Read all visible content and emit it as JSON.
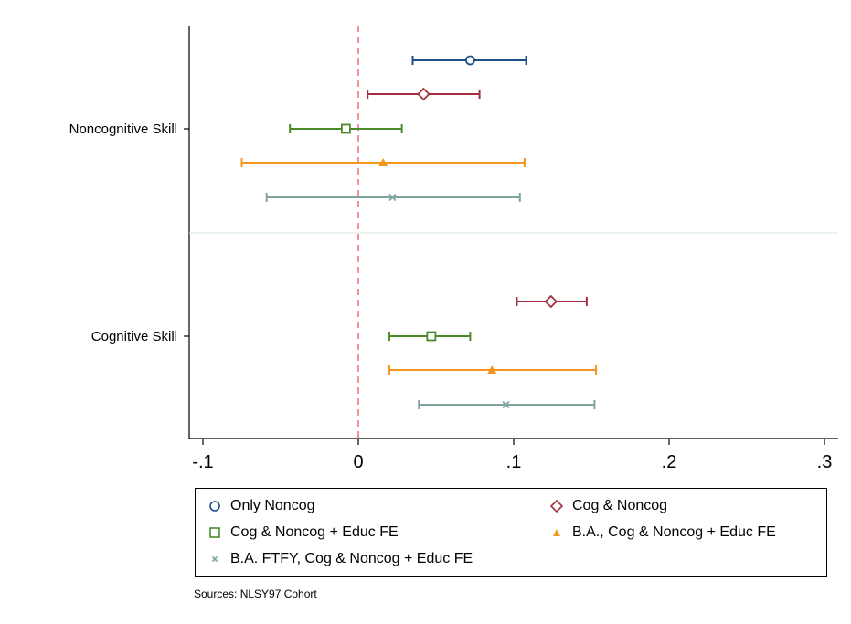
{
  "chart_data": {
    "type": "coefficient-plot",
    "xlim": [
      -0.11,
      0.31
    ],
    "xticks": [
      -0.1,
      0,
      0.1,
      0.2,
      0.3
    ],
    "xtick_labels": [
      "-.1",
      "0",
      ".1",
      ".2",
      ".3"
    ],
    "reference_line": 0,
    "categories": [
      "Noncognitive Skill",
      "Cognitive Skill"
    ],
    "grid": false,
    "legend_position": "bottom",
    "series": [
      {
        "name": "Only Noncog",
        "color": "#1f4e8c",
        "marker": "circle",
        "points": [
          {
            "category": "Noncognitive Skill",
            "estimate": 0.072,
            "ci": [
              0.035,
              0.108
            ]
          }
        ]
      },
      {
        "name": "Cog & Noncog",
        "color": "#a4303f",
        "marker": "diamond",
        "points": [
          {
            "category": "Noncognitive Skill",
            "estimate": 0.042,
            "ci": [
              0.006,
              0.078
            ]
          },
          {
            "category": "Cognitive Skill",
            "estimate": 0.124,
            "ci": [
              0.102,
              0.147
            ]
          }
        ]
      },
      {
        "name": "Cog & Noncog + Educ FE",
        "color": "#4d8a2a",
        "marker": "square",
        "points": [
          {
            "category": "Noncognitive Skill",
            "estimate": -0.008,
            "ci": [
              -0.044,
              0.028
            ]
          },
          {
            "category": "Cognitive Skill",
            "estimate": 0.047,
            "ci": [
              0.02,
              0.072
            ]
          }
        ]
      },
      {
        "name": "B.A., Cog & Noncog + Educ FE",
        "color": "#f5961e",
        "marker": "triangle",
        "points": [
          {
            "category": "Noncognitive Skill",
            "estimate": 0.016,
            "ci": [
              -0.075,
              0.107
            ]
          },
          {
            "category": "Cognitive Skill",
            "estimate": 0.086,
            "ci": [
              0.02,
              0.153
            ]
          }
        ]
      },
      {
        "name": "B.A. FTFY, Cog & Noncog + Educ FE",
        "color": "#7fa39e",
        "marker": "x",
        "points": [
          {
            "category": "Noncognitive Skill",
            "estimate": 0.022,
            "ci": [
              -0.059,
              0.104
            ]
          },
          {
            "category": "Cognitive Skill",
            "estimate": 0.095,
            "ci": [
              0.039,
              0.152
            ]
          }
        ]
      }
    ]
  },
  "source_note": "Sources: NLSY97 Cohort"
}
